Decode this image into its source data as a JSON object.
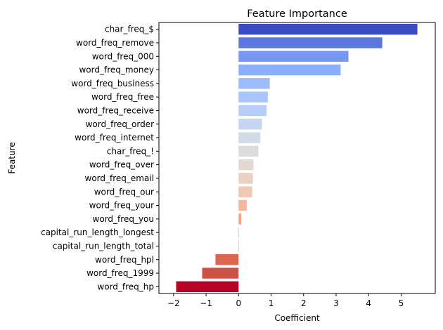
{
  "chart_data": {
    "type": "bar",
    "orientation": "horizontal",
    "title": "Feature Importance",
    "xlabel": "Coefficient",
    "ylabel": "Feature",
    "xlim": [
      -2.45,
      6.05
    ],
    "xticks": [
      -2,
      -1,
      0,
      1,
      2,
      3,
      4,
      5
    ],
    "grid": false,
    "legend": "none",
    "colormap": "coolwarm",
    "categories": [
      "char_freq_$",
      "word_freq_remove",
      "word_freq_000",
      "word_freq_money",
      "word_freq_business",
      "word_freq_free",
      "word_freq_receive",
      "word_freq_order",
      "word_freq_internet",
      "char_freq_!",
      "word_freq_over",
      "word_freq_email",
      "word_freq_our",
      "word_freq_your",
      "word_freq_you",
      "capital_run_length_longest",
      "capital_run_length_total",
      "word_freq_hpl",
      "word_freq_1999",
      "word_freq_hp"
    ],
    "values": [
      5.5,
      4.42,
      3.38,
      3.14,
      0.96,
      0.9,
      0.86,
      0.72,
      0.67,
      0.61,
      0.46,
      0.44,
      0.42,
      0.25,
      0.08,
      0.01,
      0.0,
      -0.71,
      -1.12,
      -1.92
    ],
    "colors": [
      "#3b4cc0",
      "#5a78e0",
      "#7698f2",
      "#8db0fe",
      "#9bbcff",
      "#a9c6fd",
      "#b5cdfa",
      "#c5d5f2",
      "#d2dbe8",
      "#dddcdc",
      "#e4d9d2",
      "#ebd1c2",
      "#f0c9b2",
      "#f4b79b",
      "#f4a383",
      "#f08f6d",
      "#e87b5c",
      "#dd664f",
      "#cc5246",
      "#b40426"
    ]
  }
}
